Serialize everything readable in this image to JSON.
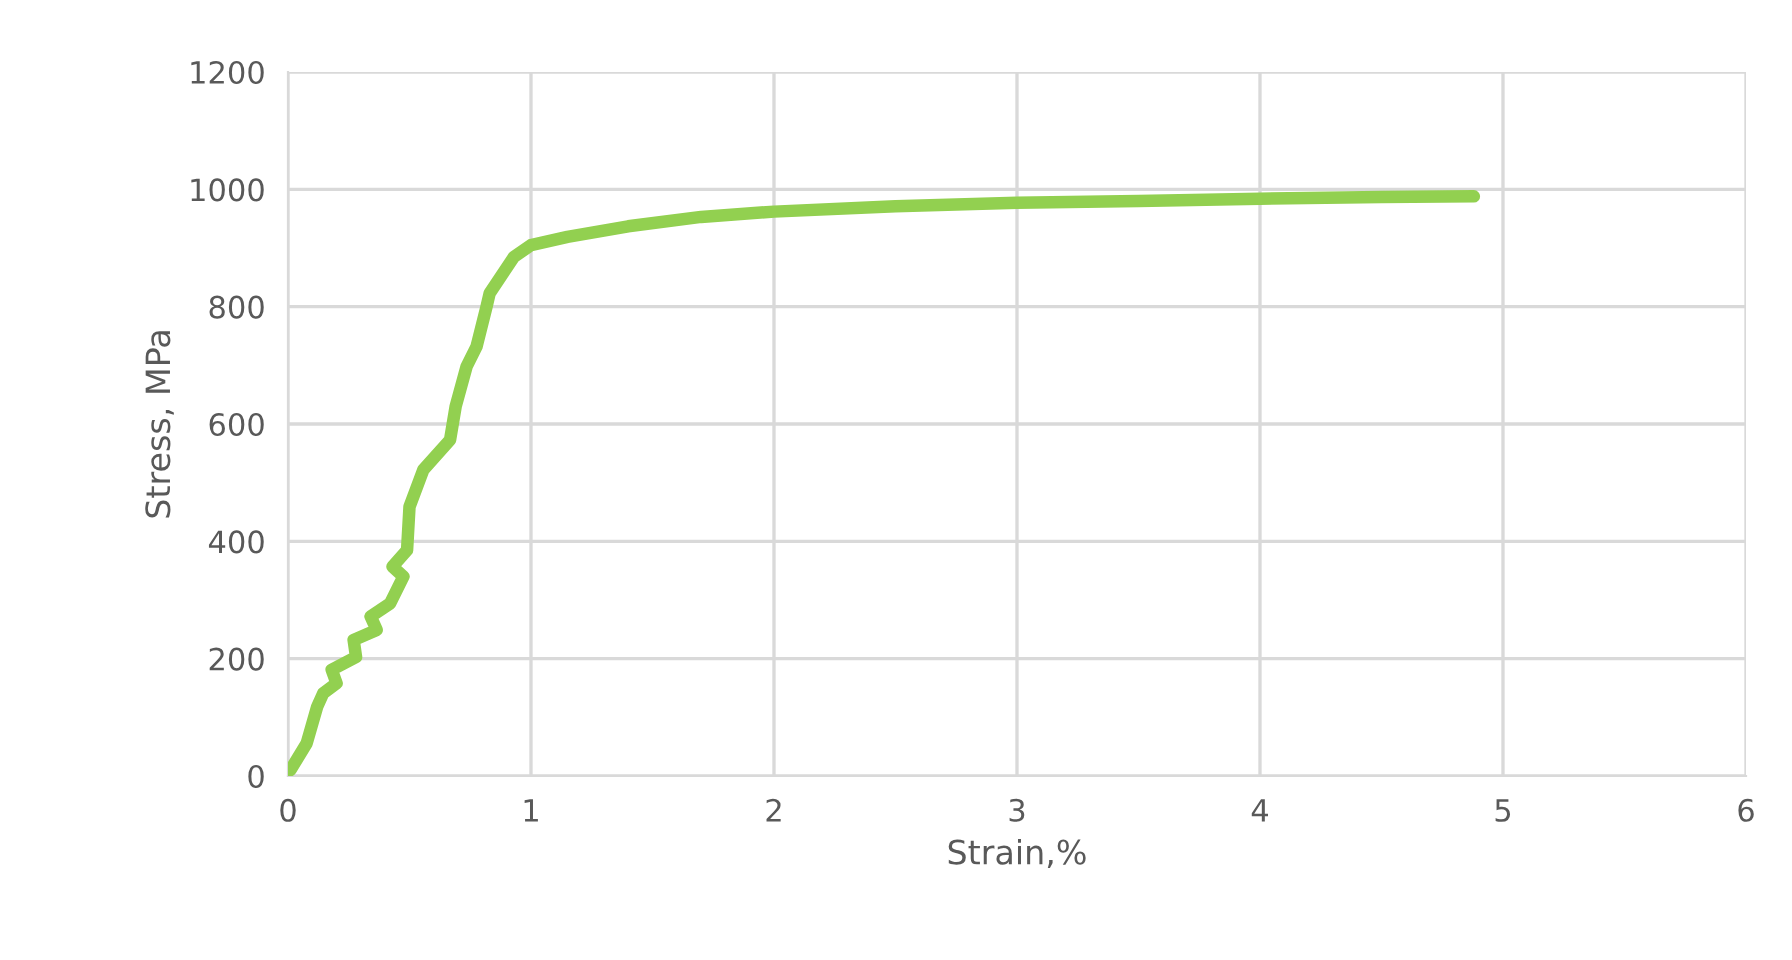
{
  "chart_data": {
    "type": "line",
    "xlabel": "Strain,%",
    "ylabel": "Stress, MPa",
    "series": [
      {
        "color": "#92d050",
        "x": [
          0.01,
          0.077,
          0.12,
          0.145,
          0.2,
          0.18,
          0.28,
          0.27,
          0.365,
          0.34,
          0.42,
          0.475,
          0.43,
          0.49,
          0.5,
          0.557,
          0.667,
          0.69,
          0.735,
          0.776,
          0.817,
          0.83,
          0.93,
          1.0,
          1.15,
          1.4,
          1.7,
          2.0,
          2.5,
          3.0,
          3.5,
          4.0,
          4.5,
          4.88
        ],
        "values": [
          10,
          56,
          118,
          141,
          158,
          181,
          203,
          232,
          249,
          272,
          294,
          340,
          357,
          385,
          459,
          522,
          573,
          630,
          698,
          732,
          800,
          823,
          885,
          905,
          919,
          937,
          953,
          962,
          971,
          977,
          980,
          984,
          987,
          988
        ]
      }
    ],
    "xlim": [
      0,
      6
    ],
    "xticks": [
      0,
      1,
      2,
      3,
      4,
      5,
      6
    ],
    "ylim": [
      0,
      1200
    ],
    "yticks": [
      0,
      200,
      400,
      600,
      800,
      1000,
      1200
    ],
    "grid": true,
    "marker": "none",
    "line_style": "solid"
  }
}
